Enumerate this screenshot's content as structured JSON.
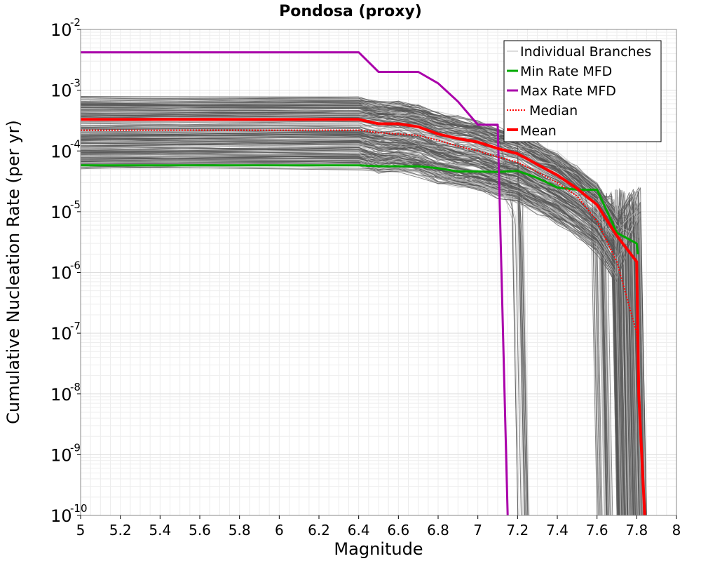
{
  "chart_data": {
    "type": "line",
    "title": "Pondosa (proxy)",
    "xlabel": "Magnitude",
    "ylabel": "Cumulative Nucleation Rate (per yr)",
    "xlim": [
      5,
      8
    ],
    "ylim": [
      1e-10,
      0.01
    ],
    "yscale": "log",
    "grid": true,
    "legend_position": "top-right",
    "x_ticks": [
      "5",
      "5.2",
      "5.4",
      "5.6",
      "5.8",
      "6",
      "6.2",
      "6.4",
      "6.6",
      "6.8",
      "7",
      "7.2",
      "7.4",
      "7.6",
      "7.8",
      "8"
    ],
    "y_ticks": [
      {
        "base": "10",
        "exp": "-10"
      },
      {
        "base": "10",
        "exp": "-9"
      },
      {
        "base": "10",
        "exp": "-8"
      },
      {
        "base": "10",
        "exp": "-7"
      },
      {
        "base": "10",
        "exp": "-6"
      },
      {
        "base": "10",
        "exp": "-5"
      },
      {
        "base": "10",
        "exp": "-4"
      },
      {
        "base": "10",
        "exp": "-3"
      },
      {
        "base": "10",
        "exp": "-2"
      }
    ],
    "series": [
      {
        "name": "Individual Branches",
        "color": "#555555",
        "style": "thin",
        "note": "hundreds of logic-tree branch curves",
        "x": [],
        "y": []
      },
      {
        "name": "Min Rate MFD",
        "color": "#00aa00",
        "style": "solid",
        "x": [
          5.0,
          6.4,
          6.5,
          6.7,
          6.8,
          6.9,
          7.0,
          7.1,
          7.2,
          7.3,
          7.4,
          7.5,
          7.6,
          7.7,
          7.8,
          7.805
        ],
        "y": [
          5.8e-05,
          5.8e-05,
          5.6e-05,
          5.6e-05,
          5.2e-05,
          4.6e-05,
          4.6e-05,
          4.5e-05,
          4.7e-05,
          3.6e-05,
          2.5e-05,
          2.3e-05,
          2.3e-05,
          4.5e-06,
          3e-06,
          2e-06
        ]
      },
      {
        "name": "Max Rate MFD",
        "color": "#aa00aa",
        "style": "solid",
        "x": [
          5.0,
          6.4,
          6.5,
          6.6,
          6.7,
          6.8,
          6.9,
          7.0,
          7.1,
          7.15
        ],
        "y": [
          0.0042,
          0.0042,
          0.002,
          0.002,
          0.002,
          0.0013,
          0.00065,
          0.00027,
          0.00027,
          1e-10
        ]
      },
      {
        "name": "Median",
        "color": "#ff0000",
        "style": "dotted",
        "x": [
          5.0,
          6.4,
          6.5,
          6.6,
          6.7,
          6.8,
          6.9,
          7.0,
          7.1,
          7.2,
          7.3,
          7.4,
          7.5,
          7.6,
          7.7,
          7.8,
          7.84
        ],
        "y": [
          0.00022,
          0.00022,
          0.0002,
          0.00019,
          0.00018,
          0.00015,
          0.00012,
          0.0001,
          8e-05,
          6.5e-05,
          4.5e-05,
          3e-05,
          1.8e-05,
          7e-06,
          1.5e-06,
          1e-07,
          1e-10
        ]
      },
      {
        "name": "Mean",
        "color": "#ff0000",
        "style": "thick",
        "x": [
          5.0,
          6.4,
          6.5,
          6.6,
          6.7,
          6.8,
          6.9,
          7.0,
          7.1,
          7.2,
          7.3,
          7.4,
          7.5,
          7.6,
          7.7,
          7.8,
          7.81,
          7.84
        ],
        "y": [
          0.00033,
          0.00033,
          0.00028,
          0.00028,
          0.00025,
          0.00019,
          0.00016,
          0.00014,
          0.00011,
          9e-05,
          6e-05,
          4e-05,
          2.4e-05,
          1.3e-05,
          4e-06,
          1.5e-06,
          1e-08,
          1e-10
        ]
      }
    ]
  }
}
